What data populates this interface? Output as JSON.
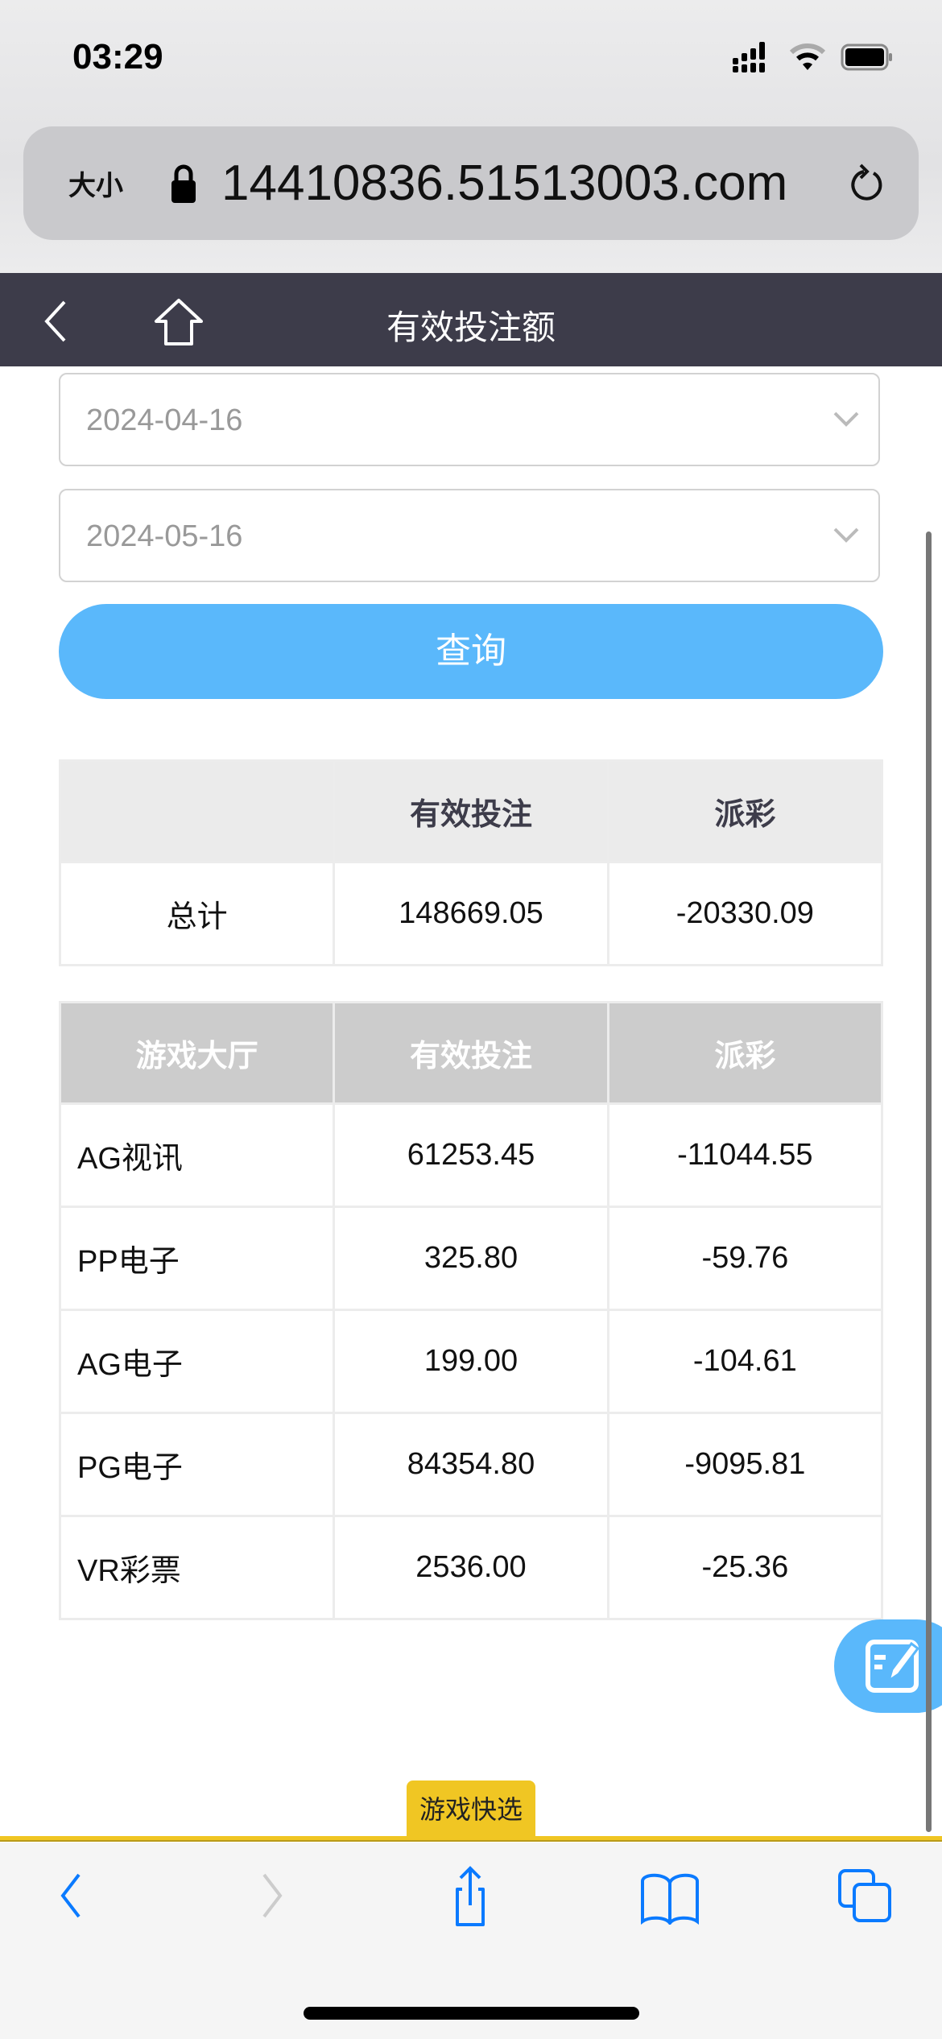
{
  "status_bar": {
    "time": "03:29"
  },
  "browser": {
    "text_size_label": "大小",
    "url": "14410836.51513003.com"
  },
  "header": {
    "title": "有效投注额"
  },
  "filters": {
    "start_date": "2024-04-16",
    "end_date": "2024-05-16",
    "query_label": "查询"
  },
  "summary_table": {
    "headers": [
      "",
      "有效投注",
      "派彩"
    ],
    "row": {
      "label": "总计",
      "valid_bet": "148669.05",
      "payout": "-20330.09"
    }
  },
  "detail_table": {
    "headers": [
      "游戏大厅",
      "有效投注",
      "派彩"
    ],
    "rows": [
      {
        "hall": "AG视讯",
        "valid_bet": "61253.45",
        "payout": "-11044.55"
      },
      {
        "hall": "PP电子",
        "valid_bet": "325.80",
        "payout": "-59.76"
      },
      {
        "hall": "AG电子",
        "valid_bet": "199.00",
        "payout": "-104.61"
      },
      {
        "hall": "PG电子",
        "valid_bet": "84354.80",
        "payout": "-9095.81"
      },
      {
        "hall": "VR彩票",
        "valid_bet": "2536.00",
        "payout": "-25.36"
      }
    ]
  },
  "quick_select_label": "游戏快选",
  "colors": {
    "accent": "#5ab8fb",
    "nav": "#3d3c4a",
    "quick_tab": "#f0c623",
    "ios_blue": "#0a7aff"
  }
}
